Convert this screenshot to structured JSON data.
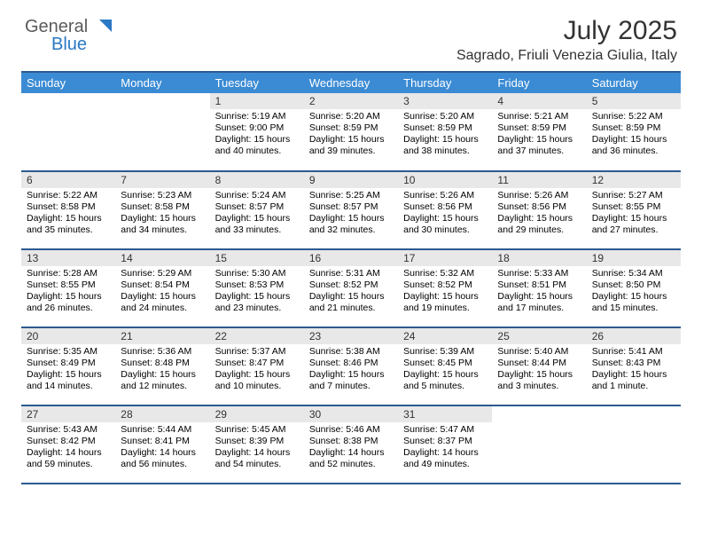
{
  "colors": {
    "header_blue": "#3b8bd4",
    "border_blue": "#2c5a8f",
    "daynum_bg": "#e8e8e8",
    "text": "#000000",
    "title_text": "#333333",
    "background": "#ffffff",
    "logo_gray": "#5a5a5a",
    "logo_blue": "#2b78c4"
  },
  "typography": {
    "month_title_fontsize": 30,
    "location_fontsize": 16,
    "dayname_fontsize": 13,
    "daynum_fontsize": 12,
    "cell_fontsize": 10.5
  },
  "logo": {
    "text_general": "General",
    "text_blue": "Blue"
  },
  "header": {
    "month_title": "July 2025",
    "location": "Sagrado, Friuli Venezia Giulia, Italy"
  },
  "day_names": [
    "Sunday",
    "Monday",
    "Tuesday",
    "Wednesday",
    "Thursday",
    "Friday",
    "Saturday"
  ],
  "weeks": [
    [
      null,
      null,
      {
        "n": "1",
        "sr": "Sunrise: 5:19 AM",
        "ss": "Sunset: 9:00 PM",
        "dl": "Daylight: 15 hours and 40 minutes."
      },
      {
        "n": "2",
        "sr": "Sunrise: 5:20 AM",
        "ss": "Sunset: 8:59 PM",
        "dl": "Daylight: 15 hours and 39 minutes."
      },
      {
        "n": "3",
        "sr": "Sunrise: 5:20 AM",
        "ss": "Sunset: 8:59 PM",
        "dl": "Daylight: 15 hours and 38 minutes."
      },
      {
        "n": "4",
        "sr": "Sunrise: 5:21 AM",
        "ss": "Sunset: 8:59 PM",
        "dl": "Daylight: 15 hours and 37 minutes."
      },
      {
        "n": "5",
        "sr": "Sunrise: 5:22 AM",
        "ss": "Sunset: 8:59 PM",
        "dl": "Daylight: 15 hours and 36 minutes."
      }
    ],
    [
      {
        "n": "6",
        "sr": "Sunrise: 5:22 AM",
        "ss": "Sunset: 8:58 PM",
        "dl": "Daylight: 15 hours and 35 minutes."
      },
      {
        "n": "7",
        "sr": "Sunrise: 5:23 AM",
        "ss": "Sunset: 8:58 PM",
        "dl": "Daylight: 15 hours and 34 minutes."
      },
      {
        "n": "8",
        "sr": "Sunrise: 5:24 AM",
        "ss": "Sunset: 8:57 PM",
        "dl": "Daylight: 15 hours and 33 minutes."
      },
      {
        "n": "9",
        "sr": "Sunrise: 5:25 AM",
        "ss": "Sunset: 8:57 PM",
        "dl": "Daylight: 15 hours and 32 minutes."
      },
      {
        "n": "10",
        "sr": "Sunrise: 5:26 AM",
        "ss": "Sunset: 8:56 PM",
        "dl": "Daylight: 15 hours and 30 minutes."
      },
      {
        "n": "11",
        "sr": "Sunrise: 5:26 AM",
        "ss": "Sunset: 8:56 PM",
        "dl": "Daylight: 15 hours and 29 minutes."
      },
      {
        "n": "12",
        "sr": "Sunrise: 5:27 AM",
        "ss": "Sunset: 8:55 PM",
        "dl": "Daylight: 15 hours and 27 minutes."
      }
    ],
    [
      {
        "n": "13",
        "sr": "Sunrise: 5:28 AM",
        "ss": "Sunset: 8:55 PM",
        "dl": "Daylight: 15 hours and 26 minutes."
      },
      {
        "n": "14",
        "sr": "Sunrise: 5:29 AM",
        "ss": "Sunset: 8:54 PM",
        "dl": "Daylight: 15 hours and 24 minutes."
      },
      {
        "n": "15",
        "sr": "Sunrise: 5:30 AM",
        "ss": "Sunset: 8:53 PM",
        "dl": "Daylight: 15 hours and 23 minutes."
      },
      {
        "n": "16",
        "sr": "Sunrise: 5:31 AM",
        "ss": "Sunset: 8:52 PM",
        "dl": "Daylight: 15 hours and 21 minutes."
      },
      {
        "n": "17",
        "sr": "Sunrise: 5:32 AM",
        "ss": "Sunset: 8:52 PM",
        "dl": "Daylight: 15 hours and 19 minutes."
      },
      {
        "n": "18",
        "sr": "Sunrise: 5:33 AM",
        "ss": "Sunset: 8:51 PM",
        "dl": "Daylight: 15 hours and 17 minutes."
      },
      {
        "n": "19",
        "sr": "Sunrise: 5:34 AM",
        "ss": "Sunset: 8:50 PM",
        "dl": "Daylight: 15 hours and 15 minutes."
      }
    ],
    [
      {
        "n": "20",
        "sr": "Sunrise: 5:35 AM",
        "ss": "Sunset: 8:49 PM",
        "dl": "Daylight: 15 hours and 14 minutes."
      },
      {
        "n": "21",
        "sr": "Sunrise: 5:36 AM",
        "ss": "Sunset: 8:48 PM",
        "dl": "Daylight: 15 hours and 12 minutes."
      },
      {
        "n": "22",
        "sr": "Sunrise: 5:37 AM",
        "ss": "Sunset: 8:47 PM",
        "dl": "Daylight: 15 hours and 10 minutes."
      },
      {
        "n": "23",
        "sr": "Sunrise: 5:38 AM",
        "ss": "Sunset: 8:46 PM",
        "dl": "Daylight: 15 hours and 7 minutes."
      },
      {
        "n": "24",
        "sr": "Sunrise: 5:39 AM",
        "ss": "Sunset: 8:45 PM",
        "dl": "Daylight: 15 hours and 5 minutes."
      },
      {
        "n": "25",
        "sr": "Sunrise: 5:40 AM",
        "ss": "Sunset: 8:44 PM",
        "dl": "Daylight: 15 hours and 3 minutes."
      },
      {
        "n": "26",
        "sr": "Sunrise: 5:41 AM",
        "ss": "Sunset: 8:43 PM",
        "dl": "Daylight: 15 hours and 1 minute."
      }
    ],
    [
      {
        "n": "27",
        "sr": "Sunrise: 5:43 AM",
        "ss": "Sunset: 8:42 PM",
        "dl": "Daylight: 14 hours and 59 minutes."
      },
      {
        "n": "28",
        "sr": "Sunrise: 5:44 AM",
        "ss": "Sunset: 8:41 PM",
        "dl": "Daylight: 14 hours and 56 minutes."
      },
      {
        "n": "29",
        "sr": "Sunrise: 5:45 AM",
        "ss": "Sunset: 8:39 PM",
        "dl": "Daylight: 14 hours and 54 minutes."
      },
      {
        "n": "30",
        "sr": "Sunrise: 5:46 AM",
        "ss": "Sunset: 8:38 PM",
        "dl": "Daylight: 14 hours and 52 minutes."
      },
      {
        "n": "31",
        "sr": "Sunrise: 5:47 AM",
        "ss": "Sunset: 8:37 PM",
        "dl": "Daylight: 14 hours and 49 minutes."
      },
      null,
      null
    ]
  ]
}
